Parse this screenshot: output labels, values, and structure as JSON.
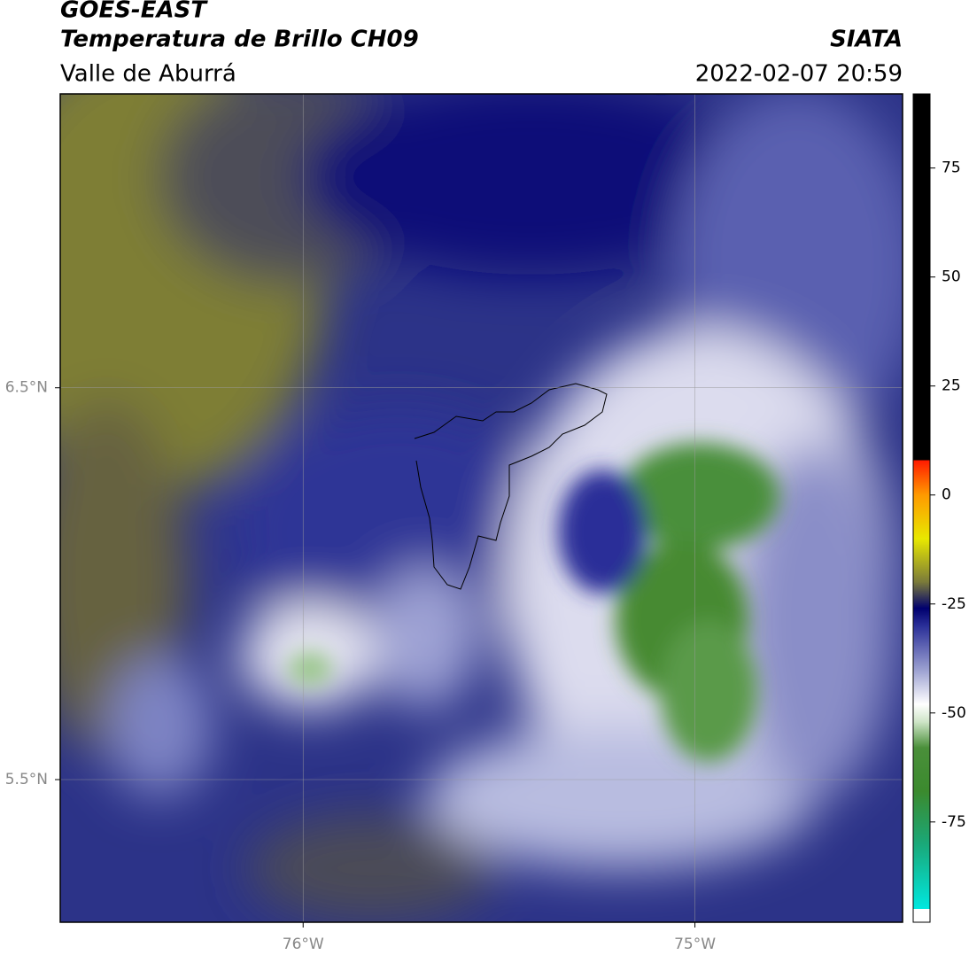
{
  "chart_data": {
    "type": "map",
    "title": "GOES-EAST",
    "subtitle": "Temperatura de Brillo CH09",
    "region": "Valle de Aburrá",
    "source": "SIATA",
    "datetime": "2022-02-07 20:59",
    "xlim": [
      -76.62,
      -74.47
    ],
    "ylim": [
      5.136,
      7.25
    ],
    "xticks": [
      {
        "value": -76,
        "label": "76°W"
      },
      {
        "value": -75,
        "label": "75°W"
      }
    ],
    "yticks": [
      {
        "value": 6.5,
        "label": "6.5°N"
      },
      {
        "value": 5.5,
        "label": "5.5°N"
      }
    ],
    "grid": true,
    "colorbar": {
      "lim": [
        -98,
        92
      ],
      "ticks": [
        75,
        50,
        25,
        0,
        -25,
        -50,
        -75
      ],
      "stops": [
        {
          "value": -98,
          "color": "#ffffff"
        },
        {
          "value": -95,
          "color": "#ffffff"
        },
        {
          "value": -95,
          "color": "#00e8e0"
        },
        {
          "value": -80,
          "color": "#1aa878"
        },
        {
          "value": -68,
          "color": "#3b8a2e"
        },
        {
          "value": -58,
          "color": "#4a8f3a"
        },
        {
          "value": -52,
          "color": "#cfe5c8"
        },
        {
          "value": -48,
          "color": "#ffffff"
        },
        {
          "value": -40,
          "color": "#9a9fd0"
        },
        {
          "value": -30,
          "color": "#2a2f98"
        },
        {
          "value": -26,
          "color": "#00006e"
        },
        {
          "value": -20,
          "color": "#7a7a3a"
        },
        {
          "value": -10,
          "color": "#e8e800"
        },
        {
          "value": 0,
          "color": "#ff9a00"
        },
        {
          "value": 8,
          "color": "#ff1a00"
        },
        {
          "value": 8,
          "color": "#000000"
        },
        {
          "value": 92,
          "color": "#000000"
        }
      ]
    }
  }
}
